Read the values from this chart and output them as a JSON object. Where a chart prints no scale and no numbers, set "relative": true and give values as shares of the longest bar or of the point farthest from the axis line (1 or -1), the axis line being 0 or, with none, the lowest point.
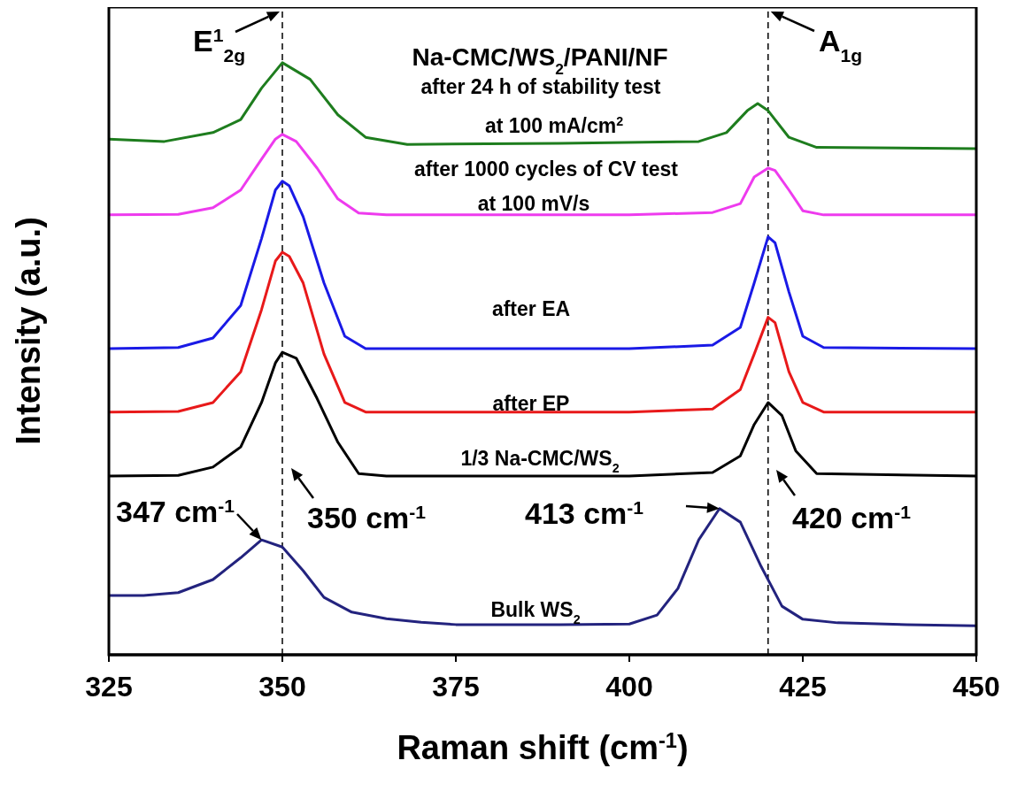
{
  "chart_data": {
    "type": "line",
    "title": "Na-CMC/WS$_{2}$/PANI/NF",
    "xlabel": "Raman shift (cm$^{-1}$)",
    "ylabel": "Intensity (a.u.)",
    "relative": true,
    "xlim": [
      325,
      450
    ],
    "xticks": [
      325,
      350,
      375,
      400,
      425,
      450
    ],
    "series": [
      {
        "name": "Bulk WS$_{2}$",
        "color": "#23237e",
        "x": [
          325,
          330,
          335,
          340,
          344,
          347,
          350,
          353,
          356,
          360,
          365,
          370,
          375,
          390,
          400,
          404,
          407,
          410,
          413,
          416,
          419,
          422,
          425,
          430,
          440,
          450
        ],
        "values": [
          0.1,
          0.1,
          0.105,
          0.127,
          0.164,
          0.194,
          0.182,
          0.142,
          0.097,
          0.072,
          0.061,
          0.055,
          0.051,
          0.051,
          0.052,
          0.067,
          0.112,
          0.194,
          0.247,
          0.224,
          0.149,
          0.082,
          0.06,
          0.054,
          0.051,
          0.049
        ]
      },
      {
        "name": "1/3 Na-CMC/WS$_{2}$",
        "color": "#000000",
        "x": [
          325,
          335,
          340,
          344,
          347,
          349,
          350,
          352,
          355,
          358,
          361,
          365,
          400,
          412,
          416,
          418,
          420,
          422,
          424,
          427,
          450
        ],
        "values": [
          0.302,
          0.303,
          0.317,
          0.351,
          0.426,
          0.493,
          0.511,
          0.501,
          0.433,
          0.359,
          0.306,
          0.302,
          0.302,
          0.308,
          0.336,
          0.389,
          0.426,
          0.404,
          0.344,
          0.306,
          0.302
        ]
      },
      {
        "name": "after EP",
        "color": "#e8191a",
        "x": [
          325,
          335,
          340,
          344,
          347,
          349,
          350,
          351,
          353,
          356,
          359,
          362,
          400,
          412,
          416,
          418,
          420,
          421,
          423,
          425,
          428,
          450
        ],
        "values": [
          0.41,
          0.411,
          0.426,
          0.478,
          0.583,
          0.665,
          0.68,
          0.673,
          0.628,
          0.508,
          0.426,
          0.41,
          0.41,
          0.415,
          0.448,
          0.508,
          0.57,
          0.561,
          0.478,
          0.426,
          0.41,
          0.41
        ]
      },
      {
        "name": "after EA",
        "color": "#1a1ae6",
        "x": [
          325,
          335,
          340,
          344,
          347,
          349,
          350,
          351,
          353,
          356,
          359,
          362,
          400,
          412,
          416,
          418,
          420,
          421,
          423,
          425,
          428,
          450
        ],
        "values": [
          0.517,
          0.519,
          0.535,
          0.59,
          0.703,
          0.785,
          0.8,
          0.792,
          0.74,
          0.628,
          0.538,
          0.517,
          0.517,
          0.523,
          0.553,
          0.628,
          0.706,
          0.696,
          0.613,
          0.538,
          0.519,
          0.517
        ]
      },
      {
        "name": "after 1000 cycles of CV test\nat 100 mV/s",
        "color": "#ee3bee",
        "x": [
          325,
          335,
          340,
          344,
          347,
          349,
          350,
          352,
          355,
          358,
          361,
          365,
          400,
          412,
          416,
          418,
          420,
          421,
          423,
          425,
          428,
          450
        ],
        "values": [
          0.743,
          0.744,
          0.755,
          0.785,
          0.837,
          0.871,
          0.879,
          0.867,
          0.822,
          0.77,
          0.746,
          0.743,
          0.743,
          0.747,
          0.762,
          0.807,
          0.822,
          0.818,
          0.785,
          0.75,
          0.743,
          0.743
        ]
      },
      {
        "name": "after 24 h of stability test\nat 100 mA/cm$^{2}$",
        "color": "#1e7d1e",
        "x": [
          325,
          333,
          340,
          344,
          347,
          350,
          354,
          358,
          362,
          368,
          390,
          410,
          414,
          417,
          418.5,
          420,
          423,
          427,
          450
        ],
        "values": [
          0.871,
          0.867,
          0.882,
          0.904,
          0.957,
          1.0,
          0.972,
          0.912,
          0.874,
          0.862,
          0.864,
          0.867,
          0.882,
          0.919,
          0.931,
          0.919,
          0.874,
          0.857,
          0.855
        ]
      }
    ],
    "ref_lines": [
      {
        "axis": "x",
        "value": 350,
        "label": "E$^{1}$$_{2g}$",
        "color": "#000000",
        "line_style": "dashed"
      },
      {
        "axis": "x",
        "value": 420,
        "label": "A$_{1g}$",
        "color": "#000000",
        "line_style": "dashed"
      }
    ],
    "annotations": [
      {
        "text": "347 cm$^{-1}$",
        "x": 347,
        "y": 0.194
      },
      "350 cm$^{-1}$",
      {
        "text": "413 cm$^{-1}$",
        "x": 413,
        "y": 0.247
      },
      "420 cm$^{-1}$"
    ]
  }
}
